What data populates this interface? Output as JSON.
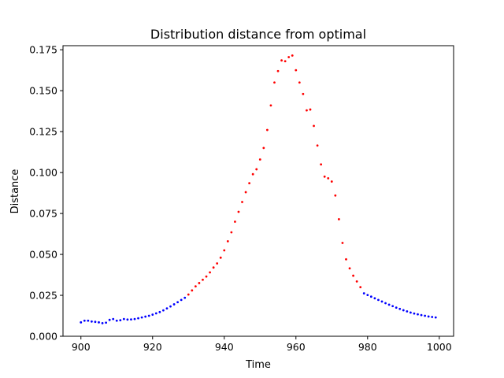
{
  "chart_data": {
    "type": "scatter",
    "title": "Distribution distance from optimal",
    "xlabel": "Time",
    "ylabel": "Distance",
    "xlim": [
      895,
      1004
    ],
    "ylim": [
      0.0,
      0.1775
    ],
    "xticks": [
      900,
      920,
      940,
      960,
      980,
      1000
    ],
    "xtick_labels": [
      "900",
      "920",
      "940",
      "960",
      "980",
      "1000"
    ],
    "yticks": [
      0.0,
      0.025,
      0.05,
      0.075,
      0.1,
      0.125,
      0.15,
      0.175
    ],
    "ytick_labels": [
      "0.000",
      "0.025",
      "0.050",
      "0.075",
      "0.100",
      "0.125",
      "0.150",
      "0.175"
    ],
    "grid": false,
    "series": [
      {
        "color": "#0000ff",
        "x": [
          900,
          901,
          902,
          903,
          904,
          905,
          906,
          907,
          908,
          909,
          910,
          911,
          912,
          913,
          914,
          915,
          916,
          917,
          918,
          919,
          920,
          921,
          922,
          923,
          924,
          925,
          926,
          927,
          928,
          929,
          979,
          980,
          981,
          982,
          983,
          984,
          985,
          986,
          987,
          988,
          989,
          990,
          991,
          992,
          993,
          994,
          995,
          996,
          997,
          998,
          999
        ],
        "y": [
          0.0085,
          0.0095,
          0.0095,
          0.009,
          0.0088,
          0.0085,
          0.008,
          0.0083,
          0.01,
          0.0105,
          0.0095,
          0.0098,
          0.0105,
          0.0102,
          0.0103,
          0.0105,
          0.011,
          0.0115,
          0.012,
          0.0125,
          0.0132,
          0.014,
          0.0148,
          0.0158,
          0.017,
          0.0182,
          0.0195,
          0.0208,
          0.0222,
          0.0235,
          0.0262,
          0.0252,
          0.0242,
          0.0232,
          0.0222,
          0.0212,
          0.0202,
          0.0193,
          0.0184,
          0.0175,
          0.0167,
          0.0159,
          0.0152,
          0.0145,
          0.0139,
          0.0134,
          0.0129,
          0.0125,
          0.0121,
          0.0118,
          0.0115
        ]
      },
      {
        "color": "#ff0000",
        "x": [
          930,
          931,
          932,
          933,
          934,
          935,
          936,
          937,
          938,
          939,
          940,
          941,
          942,
          943,
          944,
          945,
          946,
          947,
          948,
          949,
          950,
          951,
          952,
          953,
          954,
          955,
          956,
          957,
          958,
          959,
          960,
          961,
          962,
          963,
          964,
          965,
          966,
          967,
          968,
          969,
          970,
          971,
          972,
          973,
          974,
          975,
          976,
          977,
          978
        ],
        "y": [
          0.0255,
          0.028,
          0.0305,
          0.0325,
          0.0345,
          0.0365,
          0.039,
          0.042,
          0.0445,
          0.048,
          0.0525,
          0.058,
          0.0635,
          0.07,
          0.076,
          0.082,
          0.088,
          0.0935,
          0.099,
          0.102,
          0.108,
          0.115,
          0.126,
          0.141,
          0.155,
          0.162,
          0.1685,
          0.168,
          0.1705,
          0.1715,
          0.1625,
          0.155,
          0.148,
          0.138,
          0.1385,
          0.1285,
          0.1165,
          0.105,
          0.0975,
          0.0965,
          0.0945,
          0.086,
          0.0715,
          0.057,
          0.047,
          0.0415,
          0.037,
          0.0335,
          0.03
        ]
      }
    ]
  }
}
